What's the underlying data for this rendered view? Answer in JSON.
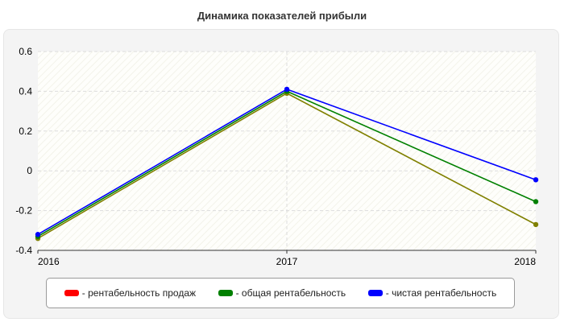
{
  "chart_data": {
    "type": "line",
    "title": "Динамика показателей прибыли",
    "categories": [
      "2016",
      "2017",
      "2018"
    ],
    "ylim": [
      -0.4,
      0.6
    ],
    "yticks": [
      "0.6",
      "0.4",
      "0.2",
      "0",
      "-0.2",
      "-0.4"
    ],
    "ytick_values": [
      0.6,
      0.4,
      0.2,
      0,
      -0.2,
      -0.4
    ],
    "grid": true,
    "legend_position": "bottom",
    "series": [
      {
        "name": "- рентабельность продаж",
        "color": "#ff0000",
        "line_color": "#808000",
        "values": [
          -0.34,
          0.39,
          -0.27
        ]
      },
      {
        "name": "- общая рентабельность",
        "color": "#008000",
        "line_color": "#008000",
        "values": [
          -0.33,
          0.4,
          -0.155
        ]
      },
      {
        "name": "- чистая рентабельность",
        "color": "#0000ff",
        "line_color": "#0000ff",
        "values": [
          -0.32,
          0.41,
          -0.045
        ]
      }
    ]
  }
}
